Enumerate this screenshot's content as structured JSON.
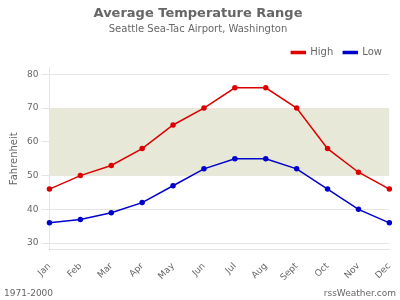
{
  "chart_data": {
    "type": "line",
    "title": "Average Temperature Range",
    "subtitle": "Seattle Sea-Tac Airport, Washington",
    "ylabel": "Fahrenheit",
    "categories": [
      "Jan",
      "Feb",
      "Mar",
      "Apr",
      "May",
      "Jun",
      "Jul",
      "Aug",
      "Sept",
      "Oct",
      "Nov",
      "Dec"
    ],
    "series": [
      {
        "name": "High",
        "color": "#dd0000",
        "marker": "circle",
        "line_style": "solid",
        "values": [
          46,
          50,
          53,
          58,
          65,
          70,
          76,
          76,
          70,
          58,
          51,
          46
        ]
      },
      {
        "name": "Low",
        "color": "#0000cc",
        "marker": "circle",
        "line_style": "solid",
        "values": [
          36,
          37,
          39,
          42,
          47,
          52,
          55,
          55,
          52,
          46,
          40,
          36
        ]
      }
    ],
    "ylim": [
      28,
      82
    ],
    "yticks": [
      30,
      40,
      50,
      60,
      70,
      80
    ],
    "bands": [
      {
        "from": 50,
        "to": 70,
        "color": "#e8e8d8"
      }
    ],
    "annotations": [
      "1971-2000",
      "rssWeather.com"
    ],
    "grid": true,
    "legend": "upper right"
  }
}
